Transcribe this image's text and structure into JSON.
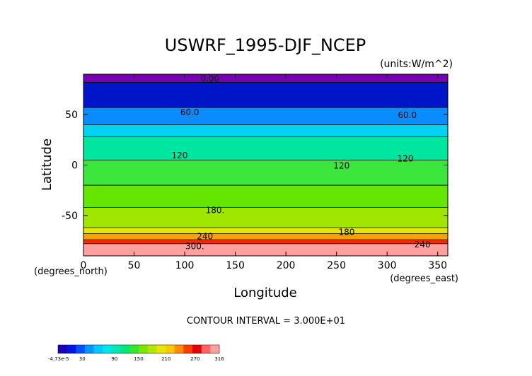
{
  "chart_data": {
    "type": "heatmap",
    "title": "USWRF_1995-DJF_NCEP",
    "units": "(units:W/m^2)",
    "xlabel": "Longitude",
    "ylabel": "Latitude",
    "x_unit_label": "(degrees_east)",
    "y_unit_label": "(degrees_north)",
    "xlim": [
      0,
      360
    ],
    "ylim": [
      -90,
      90
    ],
    "x_ticks": [
      0,
      50,
      100,
      150,
      200,
      250,
      300,
      350
    ],
    "y_ticks": [
      -50,
      0,
      50
    ],
    "contour_interval_text": "CONTOUR INTERVAL = 3.000E+01",
    "contour_interval": 30,
    "latitude_bands": [
      {
        "lat_min": 82,
        "lat_max": 90,
        "value": 0
      },
      {
        "lat_min": 57,
        "lat_max": 82,
        "value": 20
      },
      {
        "lat_min": 40,
        "lat_max": 57,
        "value": 60
      },
      {
        "lat_min": 28,
        "lat_max": 40,
        "value": 90
      },
      {
        "lat_min": 5,
        "lat_max": 28,
        "value": 120
      },
      {
        "lat_min": -20,
        "lat_max": 5,
        "value": 140
      },
      {
        "lat_min": -42,
        "lat_max": -20,
        "value": 160
      },
      {
        "lat_min": -62,
        "lat_max": -42,
        "value": 185
      },
      {
        "lat_min": -68,
        "lat_max": -62,
        "value": 215
      },
      {
        "lat_min": -74,
        "lat_max": -68,
        "value": 245
      },
      {
        "lat_min": -78,
        "lat_max": -74,
        "value": 275
      },
      {
        "lat_min": -90,
        "lat_max": -78,
        "value": 310
      }
    ],
    "contour_labels": [
      {
        "text": "0.00",
        "lon": 125,
        "lat": 86
      },
      {
        "text": "60.0",
        "lon": 105,
        "lat": 53
      },
      {
        "text": "60.0",
        "lon": 320,
        "lat": 50
      },
      {
        "text": "120",
        "lon": 95,
        "lat": 10
      },
      {
        "text": "120",
        "lon": 255,
        "lat": 0
      },
      {
        "text": "120",
        "lon": 318,
        "lat": 7
      },
      {
        "text": "180.",
        "lon": 130,
        "lat": -44
      },
      {
        "text": "180",
        "lon": 260,
        "lat": -66
      },
      {
        "text": "240",
        "lon": 120,
        "lat": -70
      },
      {
        "text": "240",
        "lon": 335,
        "lat": -78
      },
      {
        "text": "300.",
        "lon": 110,
        "lat": -80
      }
    ],
    "colorbar": {
      "min_label": "-4.73e-5",
      "tick_labels": [
        "30",
        "90",
        "150",
        "210",
        "270",
        "316"
      ],
      "colors": [
        "#1a00b4",
        "#0014e6",
        "#0050ff",
        "#0096ff",
        "#00c8ff",
        "#00e6e6",
        "#00e6b4",
        "#00e678",
        "#32e632",
        "#78e600",
        "#b4e600",
        "#e6e600",
        "#ffc800",
        "#ff8c00",
        "#ff3c00",
        "#e60000",
        "#ff6464",
        "#ffa0a0"
      ]
    }
  }
}
